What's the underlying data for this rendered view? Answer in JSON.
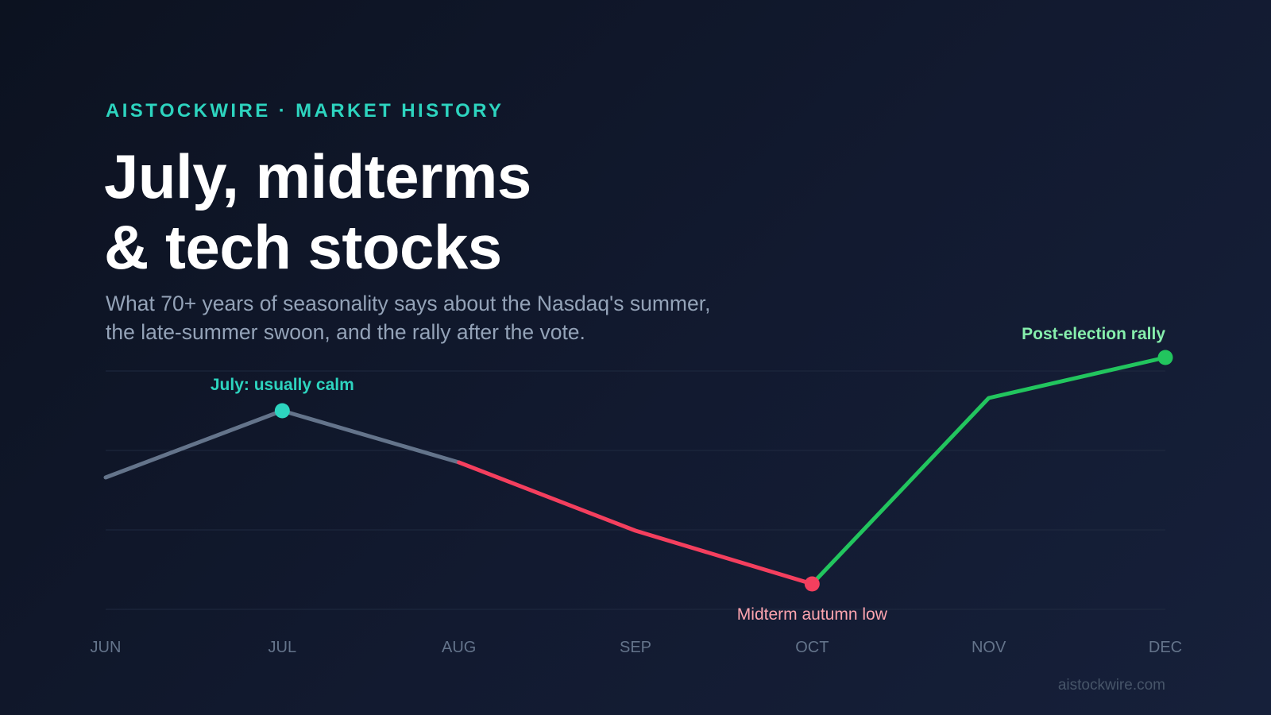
{
  "header": {
    "eyebrow": "AISTOCKWIRE · MARKET HISTORY",
    "title_line1": "July, midterms",
    "title_line2": "& tech stocks",
    "subtitle_line1": "What 70+ years of seasonality says about the Nasdaq's summer,",
    "subtitle_line2": "the late-summer swoon, and the rally after the vote."
  },
  "footer": {
    "source": "aistockwire.com"
  },
  "colors": {
    "teal": "#2dd4bf",
    "gray_line": "#64748b",
    "red": "#f43f5e",
    "green": "#22c55e",
    "green_label": "#86efac",
    "red_label": "#fda4af",
    "axis_label": "#64748b",
    "grid": "#1f2a40"
  },
  "chart_data": {
    "type": "line",
    "title": "July, midterms & tech stocks",
    "categories": [
      "JUN",
      "JUL",
      "AUG",
      "SEP",
      "OCT",
      "NOV",
      "DEC"
    ],
    "values": [
      41.6,
      50.0,
      43.5,
      34.9,
      28.2,
      51.6,
      56.7
    ],
    "ylim": [
      25,
      55
    ],
    "grid": true,
    "grid_y": [
      55,
      45,
      35,
      25
    ],
    "segments": [
      {
        "from": 0,
        "to": 2,
        "color": "#64748b"
      },
      {
        "from": 2,
        "to": 4,
        "color": "#f43f5e"
      },
      {
        "from": 4,
        "to": 6,
        "color": "#22c55e"
      }
    ],
    "annotations": [
      {
        "index": 1,
        "text": "July: usually calm",
        "color": "#2dd4bf",
        "label_color": "#2dd4bf",
        "position": "above",
        "bold": true
      },
      {
        "index": 4,
        "text": "Midterm autumn low",
        "color": "#f43f5e",
        "label_color": "#fda4af",
        "position": "below",
        "bold": false
      },
      {
        "index": 6,
        "text": "Post-election rally",
        "color": "#22c55e",
        "label_color": "#86efac",
        "position": "above-left",
        "bold": true
      }
    ]
  }
}
